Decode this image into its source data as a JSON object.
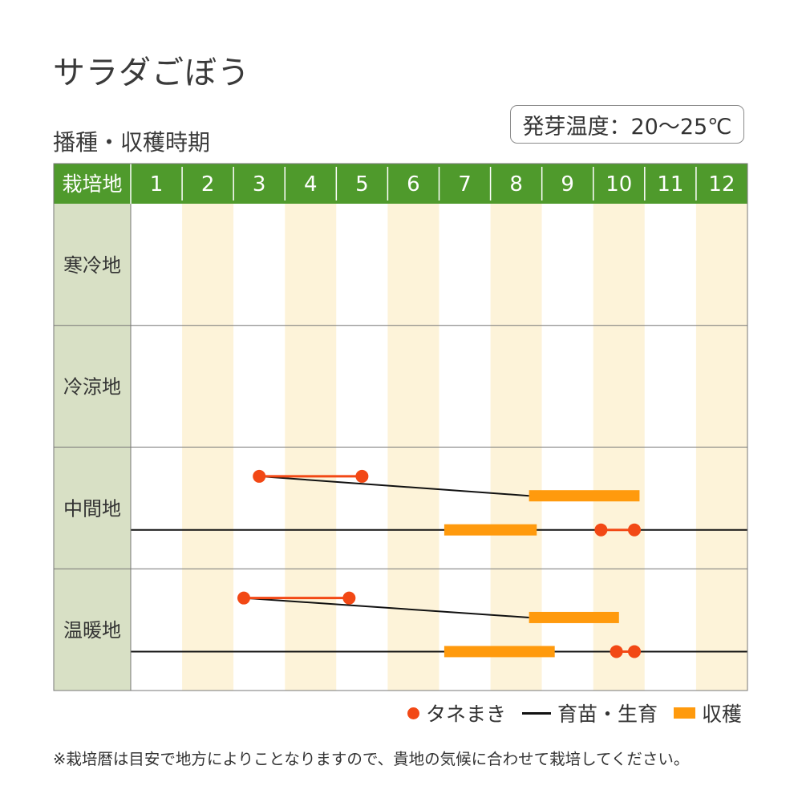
{
  "title": "サラダごぼう",
  "subtitle": "播種・収穫時期",
  "temperature_label": "発芽温度：20～25℃",
  "colors": {
    "header_green": "#4f9a2c",
    "label_column": "#d8e0c5",
    "month_stripe": "#fdf3d9",
    "sowing": "#f24815",
    "growing": "#111111",
    "harvest": "#ff9a0d",
    "grid": "#777777"
  },
  "legend": {
    "sowing": "タネまき",
    "growing": "育苗・生育",
    "harvest": "収穫"
  },
  "note": "※栽培暦は目安で地方によりことなりますので、貴地の気候に合わせて栽培してください。",
  "chart_data": {
    "type": "table",
    "header_label": "栽培地",
    "months": [
      "1",
      "2",
      "3",
      "4",
      "5",
      "6",
      "7",
      "8",
      "9",
      "10",
      "11",
      "12"
    ],
    "x_domain": [
      1,
      13
    ],
    "regions": [
      {
        "label": "寒冷地",
        "tracks": []
      },
      {
        "label": "冷涼地",
        "tracks": []
      },
      {
        "label": "中間地",
        "tracks": [
          {
            "sowing": [
              3.5,
              5.5
            ],
            "growing": [
              [
                3.5,
                8.75
              ]
            ],
            "harvest": [
              8.75,
              10.9
            ]
          },
          {
            "sowing": [
              10.15,
              10.8
            ],
            "growing": [
              [
                1,
                13
              ]
            ],
            "harvest": [
              7.1,
              8.9
            ]
          }
        ]
      },
      {
        "label": "温暖地",
        "tracks": [
          {
            "sowing": [
              3.2,
              5.25
            ],
            "growing": [
              [
                3.2,
                8.75
              ]
            ],
            "harvest": [
              8.75,
              10.5
            ]
          },
          {
            "sowing": [
              10.45,
              10.8
            ],
            "growing": [
              [
                1,
                13
              ]
            ],
            "harvest": [
              7.1,
              9.25
            ]
          }
        ]
      }
    ]
  }
}
